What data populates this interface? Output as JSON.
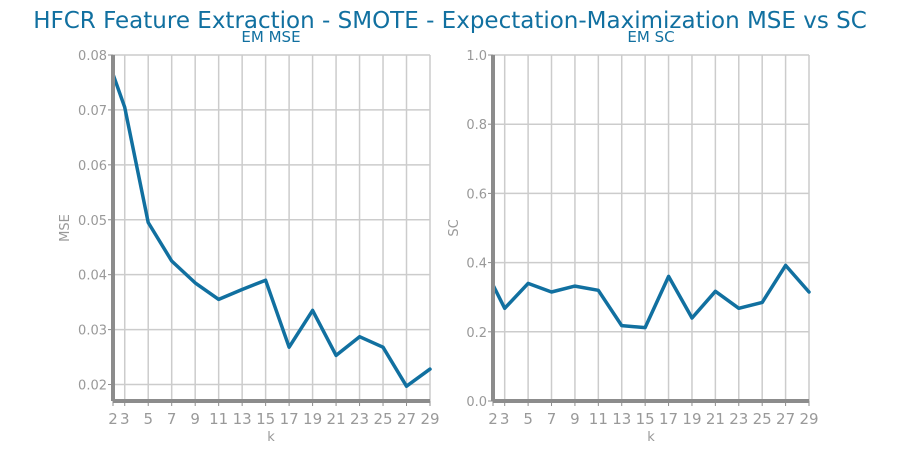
{
  "suptitle": "HFCR Feature Extraction - SMOTE - Expectation-Maximization MSE vs SC",
  "colors": {
    "title": "#1170a0",
    "series": "#1170a0",
    "grid": "#cccccc",
    "spine": "#8c8c8c",
    "tick_text": "#999999"
  },
  "chart_data": [
    {
      "type": "line",
      "title": "EM MSE",
      "xlabel": "k",
      "ylabel": "MSE",
      "x": [
        2,
        3,
        5,
        7,
        9,
        11,
        13,
        15,
        17,
        19,
        21,
        23,
        25,
        27,
        29
      ],
      "xticks": [
        2,
        3,
        5,
        7,
        9,
        11,
        13,
        15,
        17,
        19,
        21,
        23,
        25,
        27,
        29
      ],
      "xlim": [
        2,
        29
      ],
      "ylim": [
        0.017,
        0.08
      ],
      "yticks": [
        0.02,
        0.03,
        0.04,
        0.05,
        0.06,
        0.07,
        0.08
      ],
      "ytick_labels": [
        "0.02",
        "0.03",
        "0.04",
        "0.05",
        "0.06",
        "0.07",
        "0.08"
      ],
      "grid": true,
      "series": [
        {
          "values": [
            0.0765,
            0.0705,
            0.0495,
            0.0425,
            0.0385,
            0.0355,
            0.0373,
            0.039,
            0.0268,
            0.0335,
            0.0253,
            0.0287,
            0.0268,
            0.0197,
            0.0228
          ]
        }
      ]
    },
    {
      "type": "line",
      "title": "EM SC",
      "xlabel": "k",
      "ylabel": "SC",
      "x": [
        2,
        3,
        5,
        7,
        9,
        11,
        13,
        15,
        17,
        19,
        21,
        23,
        25,
        27,
        29
      ],
      "xticks": [
        2,
        3,
        5,
        7,
        9,
        11,
        13,
        15,
        17,
        19,
        21,
        23,
        25,
        27,
        29
      ],
      "xlim": [
        2,
        29
      ],
      "ylim": [
        0,
        1
      ],
      "yticks": [
        0,
        0.2,
        0.4,
        0.6,
        0.8,
        1.0
      ],
      "ytick_labels": [
        "0.0",
        "0.2",
        "0.4",
        "0.6",
        "0.8",
        "1.0"
      ],
      "grid": true,
      "series": [
        {
          "values": [
            0.335,
            0.268,
            0.34,
            0.315,
            0.332,
            0.32,
            0.218,
            0.212,
            0.36,
            0.24,
            0.317,
            0.268,
            0.285,
            0.392,
            0.315
          ]
        }
      ]
    }
  ]
}
